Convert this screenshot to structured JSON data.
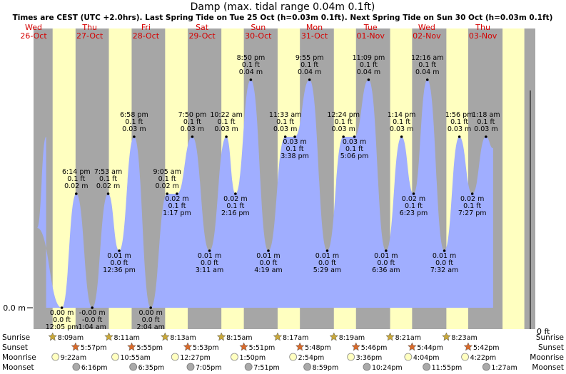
{
  "chart_data": {
    "type": "area",
    "title": "Damp (max. tidal range 0.04m 0.1ft)",
    "subtitle": "Times are CEST (UTC +2.0hrs). Last Spring Tide on Tue 25 Oct (h=0.03m 0.1ft). Next Spring Tide on Sun 30 Oct (h=0.03m 0.1ft)",
    "y_left_label": "0.0 m",
    "y_right_label": "0 ft",
    "colors": {
      "tide_fill": "#a0aeff",
      "night": "#a6a6a6",
      "day": "#ffffc0",
      "date_text": "#d40000",
      "sun": "#c9a83a",
      "sunset": "#d96a2a"
    },
    "days": [
      {
        "dow": "Wed",
        "date": "26-Oct"
      },
      {
        "dow": "Thu",
        "date": "27-Oct"
      },
      {
        "dow": "Fri",
        "date": "28-Oct"
      },
      {
        "dow": "Sat",
        "date": "29-Oct"
      },
      {
        "dow": "Sun",
        "date": "30-Oct"
      },
      {
        "dow": "Mon",
        "date": "31-Oct"
      },
      {
        "dow": "Tue",
        "date": "01-Nov"
      },
      {
        "dow": "Wed",
        "date": "02-Nov"
      },
      {
        "dow": "Thu",
        "date": "03-Nov"
      }
    ],
    "tide_events": [
      {
        "time": "12:05 pm",
        "m": "0.00 m",
        "ft": "0.0 ft",
        "kind": "low"
      },
      {
        "time": "6:14 pm",
        "m": "0.02 m",
        "ft": "0.1 ft",
        "kind": "high"
      },
      {
        "time": "1:04 am",
        "m": "-0.00 m",
        "ft": "-0.0 ft",
        "kind": "low"
      },
      {
        "time": "7:53 am",
        "m": "0.02 m",
        "ft": "0.1 ft",
        "kind": "high"
      },
      {
        "time": "12:36 pm",
        "m": "0.01 m",
        "ft": "0.0 ft",
        "kind": "low"
      },
      {
        "time": "6:58 pm",
        "m": "0.03 m",
        "ft": "0.1 ft",
        "kind": "high"
      },
      {
        "time": "2:04 am",
        "m": "0.00 m",
        "ft": "0.0 ft",
        "kind": "low"
      },
      {
        "time": "9:05 am",
        "m": "0.02 m",
        "ft": "0.1 ft",
        "kind": "high"
      },
      {
        "time": "1:17 pm",
        "m": "0.02 m",
        "ft": "0.1 ft",
        "kind": "low"
      },
      {
        "time": "7:50 pm",
        "m": "0.03 m",
        "ft": "0.1 ft",
        "kind": "high"
      },
      {
        "time": "3:11 am",
        "m": "0.01 m",
        "ft": "0.0 ft",
        "kind": "low"
      },
      {
        "time": "10:22 am",
        "m": "0.03 m",
        "ft": "0.1 ft",
        "kind": "high"
      },
      {
        "time": "2:16 pm",
        "m": "0.02 m",
        "ft": "0.1 ft",
        "kind": "low"
      },
      {
        "time": "8:50 pm",
        "m": "0.04 m",
        "ft": "0.1 ft",
        "kind": "high"
      },
      {
        "time": "4:19 am",
        "m": "0.01 m",
        "ft": "0.0 ft",
        "kind": "low"
      },
      {
        "time": "11:33 am",
        "m": "0.03 m",
        "ft": "0.1 ft",
        "kind": "high"
      },
      {
        "time": "3:38 pm",
        "m": "0.03 m",
        "ft": "0.1 ft",
        "kind": "low"
      },
      {
        "time": "9:55 pm",
        "m": "0.04 m",
        "ft": "0.1 ft",
        "kind": "high"
      },
      {
        "time": "5:29 am",
        "m": "0.01 m",
        "ft": "0.0 ft",
        "kind": "low"
      },
      {
        "time": "12:24 pm",
        "m": "0.03 m",
        "ft": "0.1 ft",
        "kind": "high"
      },
      {
        "time": "5:06 pm",
        "m": "0.03 m",
        "ft": "0.1 ft",
        "kind": "low"
      },
      {
        "time": "11:09 pm",
        "m": "0.04 m",
        "ft": "0.1 ft",
        "kind": "high"
      },
      {
        "time": "6:36 am",
        "m": "0.01 m",
        "ft": "0.0 ft",
        "kind": "low"
      },
      {
        "time": "1:14 pm",
        "m": "0.03 m",
        "ft": "0.1 ft",
        "kind": "high"
      },
      {
        "time": "6:23 pm",
        "m": "0.02 m",
        "ft": "0.1 ft",
        "kind": "low"
      },
      {
        "time": "12:16 am",
        "m": "0.04 m",
        "ft": "0.1 ft",
        "kind": "high"
      },
      {
        "time": "7:32 am",
        "m": "0.01 m",
        "ft": "0.0 ft",
        "kind": "low"
      },
      {
        "time": "1:56 pm",
        "m": "0.03 m",
        "ft": "0.1 ft",
        "kind": "high"
      },
      {
        "time": "7:27 pm",
        "m": "0.02 m",
        "ft": "0.1 ft",
        "kind": "low"
      },
      {
        "time": "1:18 am",
        "m": "0.03 m",
        "ft": "0.1 ft",
        "kind": "high"
      }
    ],
    "row_labels": [
      "Sunrise",
      "Sunset",
      "Moonrise",
      "Moonset"
    ],
    "sunrise": [
      "8:09am",
      "8:11am",
      "8:13am",
      "8:15am",
      "8:17am",
      "8:19am",
      "8:21am",
      "8:23am"
    ],
    "sunset": [
      "5:57pm",
      "5:55pm",
      "5:53pm",
      "5:51pm",
      "5:48pm",
      "5:46pm",
      "5:44pm",
      "5:42pm"
    ],
    "moonrise": [
      "9:22am",
      "10:55am",
      "12:27pm",
      "1:50pm",
      "2:54pm",
      "3:36pm",
      "4:04pm",
      "4:22pm"
    ],
    "moonset": [
      "6:16pm",
      "6:35pm",
      "7:05pm",
      "7:51pm",
      "8:59pm",
      "10:24pm",
      "11:55pm",
      "1:27am"
    ]
  }
}
